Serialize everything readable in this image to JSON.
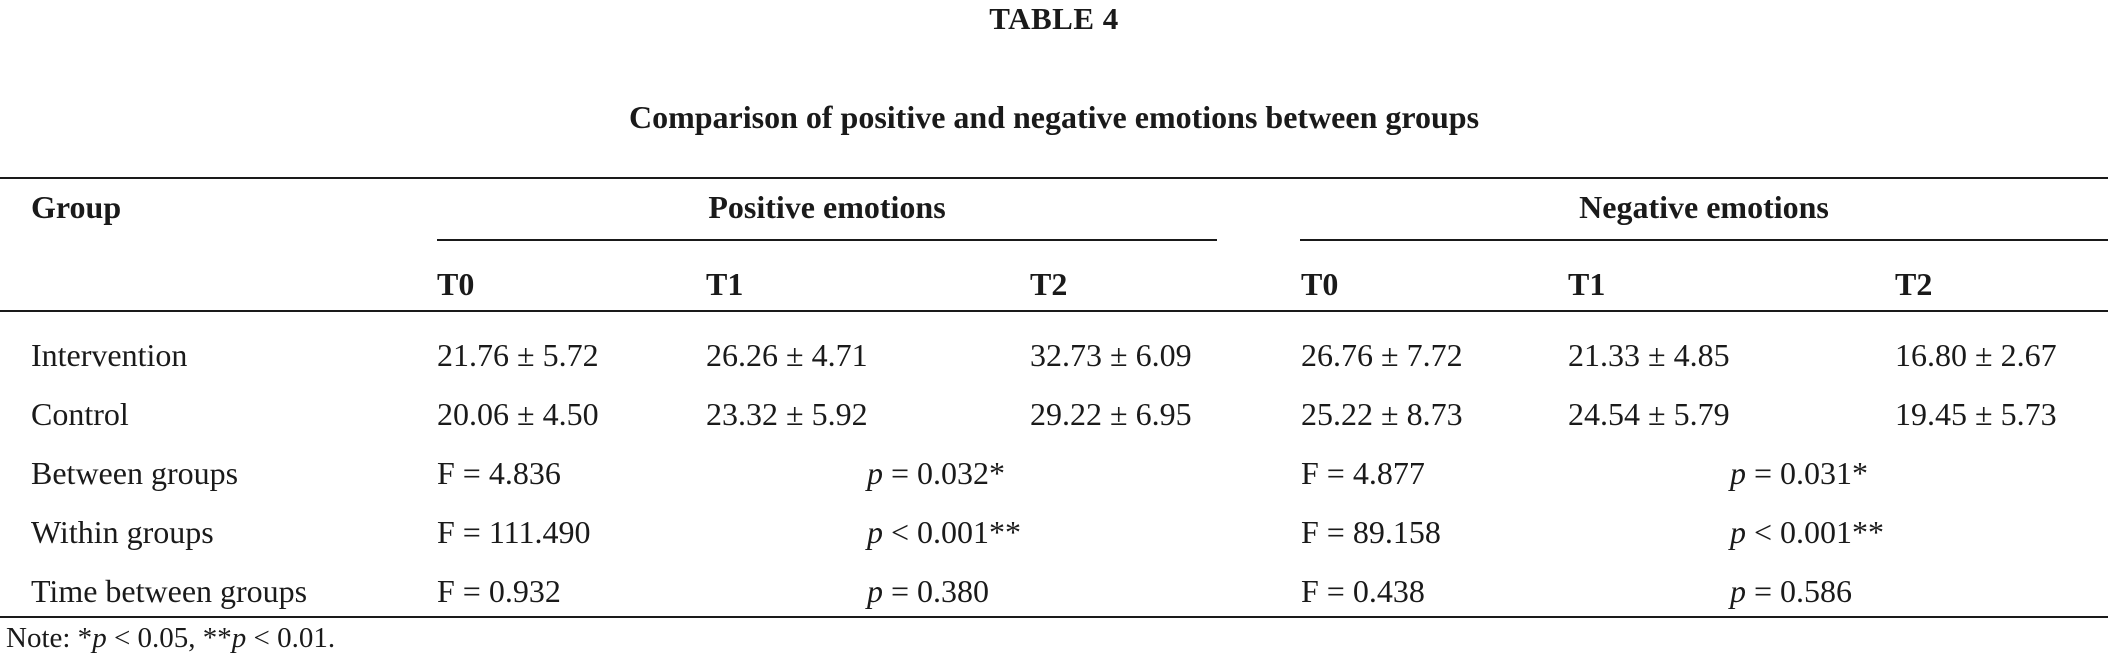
{
  "table_label": "TABLE 4",
  "caption": "Comparison of positive and negative emotions between groups",
  "header": {
    "group": "Group",
    "positive": "Positive emotions",
    "negative": "Negative emotions",
    "pos_t0": "T0",
    "pos_t1": "T1",
    "pos_t2": "T2",
    "neg_t0": "T0",
    "neg_t1": "T1",
    "neg_t2": "T2"
  },
  "rows": [
    {
      "group": "Intervention",
      "pos_t0": "21.76 ± 5.72",
      "pos_t1": "26.26 ± 4.71",
      "pos_t2": "32.73 ± 6.09",
      "neg_t0": "26.76 ± 7.72",
      "neg_t1": "21.33 ± 4.85",
      "neg_t2": "16.80 ± 2.67"
    },
    {
      "group": "Control",
      "pos_t0": "20.06 ± 4.50",
      "pos_t1": "23.32 ± 5.92",
      "pos_t2": "29.22 ± 6.95",
      "neg_t0": "25.22 ± 8.73",
      "neg_t1": "24.54 ± 5.79",
      "neg_t2": "19.45 ± 5.73"
    }
  ],
  "stats": [
    {
      "group": "Between groups",
      "pos_f": "F = 4.836",
      "pos_p_op": " = 0.032*",
      "neg_f": "F = 4.877",
      "neg_p_op": " = 0.031*"
    },
    {
      "group": "Within groups",
      "pos_f": "F = 111.490",
      "pos_p_op": " < 0.001**",
      "neg_f": "F = 89.158",
      "neg_p_op": " < 0.001**"
    },
    {
      "group": "Time between groups",
      "pos_f": "F = 0.932",
      "pos_p_op": " = 0.380",
      "neg_f": "F = 0.438",
      "neg_p_op": " = 0.586"
    }
  ],
  "p_symbol": "p",
  "note": {
    "prefix": "Note: *",
    "p1": "p",
    "mid": " < 0.05, **",
    "p2": "p",
    "suffix": " < 0.01."
  }
}
